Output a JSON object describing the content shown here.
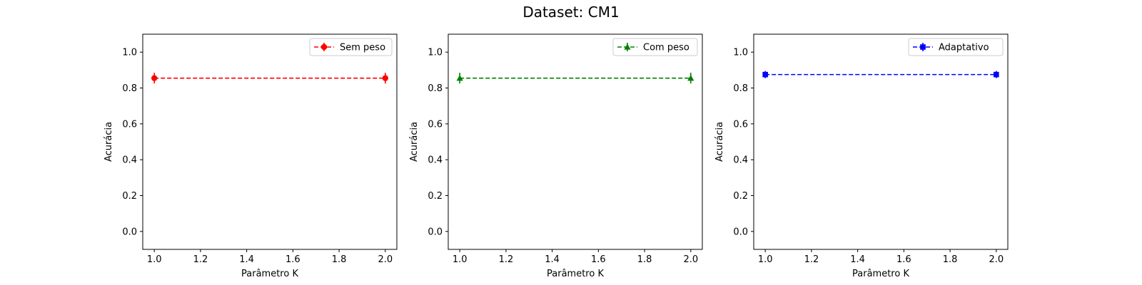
{
  "figure": {
    "title": "Dataset: CM1"
  },
  "chart_data": [
    {
      "type": "line",
      "title": "",
      "xlabel": "Parâmetro K",
      "ylabel": "Acurácia",
      "xlim": [
        0.95,
        2.05
      ],
      "ylim": [
        -0.1,
        1.1
      ],
      "xticks": [
        1.0,
        1.2,
        1.4,
        1.6,
        1.8,
        2.0
      ],
      "xtick_labels": [
        "1.0",
        "1.2",
        "1.4",
        "1.6",
        "1.8",
        "2.0"
      ],
      "yticks": [
        0.0,
        0.2,
        0.4,
        0.6,
        0.8,
        1.0
      ],
      "ytick_labels": [
        "0.0",
        "0.2",
        "0.4",
        "0.6",
        "0.8",
        "1.0"
      ],
      "grid": false,
      "legend_position": "top-right",
      "series": [
        {
          "name": "Sem peso",
          "color": "#ff0000",
          "marker": "circle",
          "linestyle": "dashed",
          "x": [
            1.0,
            2.0
          ],
          "y": [
            0.855,
            0.855
          ],
          "yerr": [
            0.03,
            0.03
          ]
        }
      ]
    },
    {
      "type": "line",
      "title": "",
      "xlabel": "Parâmetro K",
      "ylabel": "Acurácia",
      "xlim": [
        0.95,
        2.05
      ],
      "ylim": [
        -0.1,
        1.1
      ],
      "xticks": [
        1.0,
        1.2,
        1.4,
        1.6,
        1.8,
        2.0
      ],
      "xtick_labels": [
        "1.0",
        "1.2",
        "1.4",
        "1.6",
        "1.8",
        "2.0"
      ],
      "yticks": [
        0.0,
        0.2,
        0.4,
        0.6,
        0.8,
        1.0
      ],
      "ytick_labels": [
        "0.0",
        "0.2",
        "0.4",
        "0.6",
        "0.8",
        "1.0"
      ],
      "grid": false,
      "legend_position": "top-right",
      "series": [
        {
          "name": "Com peso",
          "color": "#008000",
          "marker": "triangle-up",
          "linestyle": "dashed",
          "x": [
            1.0,
            2.0
          ],
          "y": [
            0.855,
            0.855
          ],
          "yerr": [
            0.03,
            0.03
          ]
        }
      ]
    },
    {
      "type": "line",
      "title": "",
      "xlabel": "Parâmetro K",
      "ylabel": "Acurácia",
      "xlim": [
        0.95,
        2.05
      ],
      "ylim": [
        -0.1,
        1.1
      ],
      "xticks": [
        1.0,
        1.2,
        1.4,
        1.6,
        1.8,
        2.0
      ],
      "xtick_labels": [
        "1.0",
        "1.2",
        "1.4",
        "1.6",
        "1.8",
        "2.0"
      ],
      "yticks": [
        0.0,
        0.2,
        0.4,
        0.6,
        0.8,
        1.0
      ],
      "ytick_labels": [
        "0.0",
        "0.2",
        "0.4",
        "0.6",
        "0.8",
        "1.0"
      ],
      "grid": false,
      "legend_position": "top-right",
      "series": [
        {
          "name": "Adaptativo",
          "color": "#0000ff",
          "marker": "square",
          "linestyle": "dashed",
          "x": [
            1.0,
            2.0
          ],
          "y": [
            0.875,
            0.875
          ],
          "yerr": [
            0.02,
            0.02
          ]
        }
      ]
    }
  ]
}
